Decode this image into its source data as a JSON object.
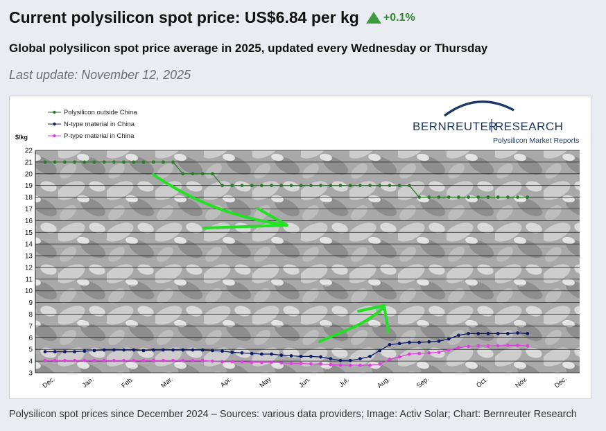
{
  "header": {
    "title": "Current polysilicon spot price: US$6.84 per kg",
    "change": "+0.1%",
    "subtitle": "Global polysilicon spot price average in 2025, updated every Wednesday or Thursday",
    "last_update": "Last update: November 12, 2025"
  },
  "caption": "Polysilicon spot prices since December 2024 – Sources: various data providers; Image: Activ Solar; Chart: Bernreuter Research",
  "logo": {
    "primary": "BERNREUTER",
    "secondary": "RESEARCH",
    "tagline": "Polysilicon Market Reports"
  },
  "colors": {
    "outside_china": "#2a7a2a",
    "n_type": "#0f1a66",
    "p_type": "#e040e0",
    "arrow": "#22e022",
    "up": "#3c9b3a"
  },
  "chart_data": {
    "type": "line",
    "ylabel": "$/kg",
    "ylim": [
      3,
      22
    ],
    "yticks": [
      3,
      4,
      5,
      6,
      7,
      8,
      9,
      10,
      11,
      12,
      13,
      14,
      15,
      16,
      17,
      18,
      19,
      20,
      21,
      22
    ],
    "xlim": [
      0,
      50
    ],
    "months": [
      {
        "label": "Dec.",
        "pos": 0.5
      },
      {
        "label": "Jan.",
        "pos": 4.5
      },
      {
        "label": "Feb.",
        "pos": 8.5
      },
      {
        "label": "Mar.",
        "pos": 12.5
      },
      {
        "label": "Apr.",
        "pos": 18.5
      },
      {
        "label": "May",
        "pos": 22.5
      },
      {
        "label": "Jun.",
        "pos": 26.5
      },
      {
        "label": "Jul.",
        "pos": 30.5
      },
      {
        "label": "Aug.",
        "pos": 34.5
      },
      {
        "label": "Sep.",
        "pos": 38.5
      },
      {
        "label": "Oct.",
        "pos": 44.5
      },
      {
        "label": "Nov.",
        "pos": 48.5
      },
      {
        "label": "Dec.",
        "pos": 52.5
      }
    ],
    "series": [
      {
        "name": "Polysilicon outside China",
        "key": "outside_china",
        "values": [
          21,
          21,
          21,
          21,
          21,
          21,
          21,
          21,
          21,
          21,
          21,
          21,
          21,
          21,
          20,
          20,
          20,
          20,
          19,
          19,
          19,
          19,
          19,
          19,
          19,
          19,
          19,
          19,
          19,
          19,
          19,
          19,
          19,
          19,
          19,
          19,
          19,
          19,
          18,
          18,
          18,
          18,
          18,
          18,
          18,
          18,
          18,
          18,
          18,
          18
        ]
      },
      {
        "name": "N-type material in China",
        "key": "n_type",
        "values": [
          4.8,
          4.8,
          4.8,
          4.8,
          4.85,
          4.9,
          4.95,
          4.95,
          4.95,
          4.95,
          4.9,
          4.95,
          4.95,
          4.95,
          4.95,
          4.95,
          4.95,
          4.9,
          4.85,
          4.75,
          4.7,
          4.65,
          4.6,
          4.6,
          4.5,
          4.45,
          4.4,
          4.4,
          4.35,
          4.2,
          4.05,
          4.05,
          4.2,
          4.4,
          4.9,
          5.4,
          5.5,
          5.6,
          5.6,
          5.65,
          5.7,
          5.9,
          6.2,
          6.35,
          6.35,
          6.35,
          6.35,
          6.35,
          6.4,
          6.35
        ]
      },
      {
        "name": "P-type material in China",
        "key": "p_type",
        "values": [
          4.05,
          4.05,
          4.05,
          4.05,
          4.05,
          4.05,
          4.05,
          4.05,
          4.05,
          4.05,
          4.05,
          4.05,
          4.05,
          4.05,
          4.05,
          4.05,
          4.05,
          4.0,
          3.95,
          3.95,
          3.95,
          3.9,
          3.9,
          3.9,
          3.85,
          3.8,
          3.8,
          3.75,
          3.75,
          3.7,
          3.65,
          3.65,
          3.65,
          3.65,
          3.75,
          4.15,
          4.35,
          4.6,
          4.65,
          4.7,
          4.75,
          4.95,
          5.15,
          5.25,
          5.3,
          5.3,
          5.3,
          5.35,
          5.35,
          5.3
        ]
      }
    ],
    "legend_position": "top-left"
  }
}
